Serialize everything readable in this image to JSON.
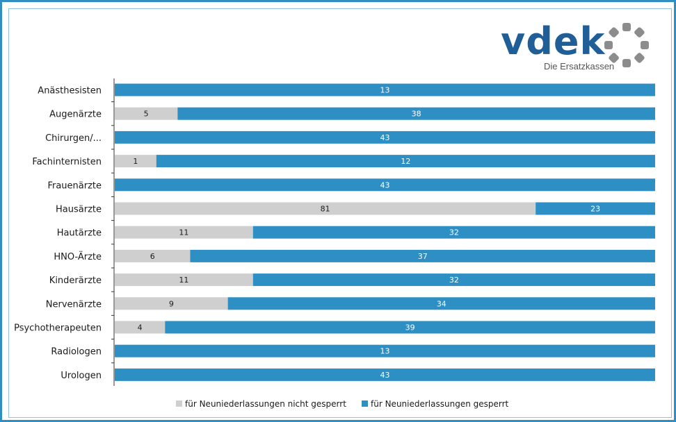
{
  "logo": {
    "name": "vdek",
    "tagline": "Die Ersatzkassen",
    "brand_color": "#1f5e96",
    "ring_color": "#8c8c8c"
  },
  "colors": {
    "frame": "#2f8fc2",
    "not_blocked": "#cfcfcf",
    "blocked": "#2e8fc4"
  },
  "chart_data": {
    "type": "bar",
    "orientation": "horizontal",
    "stacked": true,
    "normalized": true,
    "categories": [
      "Anästhesisten",
      "Augenärzte",
      "Chirurgen/...",
      "Fachinternisten",
      "Frauenärzte",
      "Hausärzte",
      "Hautärzte",
      "HNO-Ärzte",
      "Kinderärzte",
      "Nervenärzte",
      "Psychotherapeuten",
      "Radiologen",
      "Urologen"
    ],
    "series": [
      {
        "name": "für Neuniederlassungen nicht gesperrt",
        "color": "#cfcfcf",
        "values": [
          0,
          5,
          0,
          1,
          0,
          81,
          11,
          6,
          11,
          9,
          4,
          0,
          0
        ]
      },
      {
        "name": "für Neuniederlassungen gesperrt",
        "color": "#2e8fc4",
        "values": [
          13,
          38,
          43,
          12,
          43,
          23,
          32,
          37,
          32,
          34,
          39,
          13,
          43
        ]
      }
    ],
    "legend_position": "bottom",
    "grid": false
  }
}
